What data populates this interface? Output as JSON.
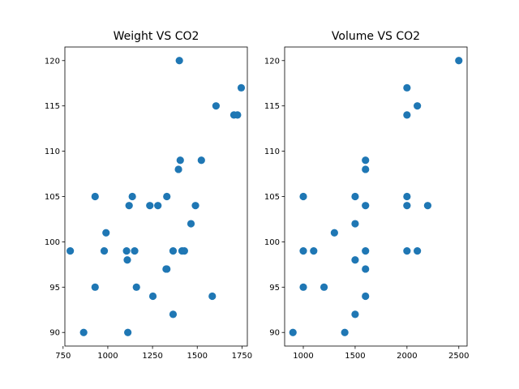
{
  "chart_data": [
    {
      "type": "scatter",
      "title": "Weight VS CO2",
      "xlabel": "",
      "ylabel": "",
      "xlim": [
        760,
        1780
      ],
      "ylim": [
        88.5,
        121.5
      ],
      "xticks": [
        750,
        1000,
        1250,
        1500,
        1750
      ],
      "yticks": [
        90,
        95,
        100,
        105,
        110,
        115,
        120
      ],
      "grid": false,
      "color": "#1f77b4",
      "points": [
        {
          "x": 790,
          "y": 99
        },
        {
          "x": 865,
          "y": 90
        },
        {
          "x": 929,
          "y": 95
        },
        {
          "x": 929,
          "y": 105
        },
        {
          "x": 980,
          "y": 99
        },
        {
          "x": 990,
          "y": 101
        },
        {
          "x": 1105,
          "y": 99
        },
        {
          "x": 1109,
          "y": 98
        },
        {
          "x": 1112,
          "y": 90
        },
        {
          "x": 1119,
          "y": 104
        },
        {
          "x": 1137,
          "y": 105
        },
        {
          "x": 1150,
          "y": 99
        },
        {
          "x": 1160,
          "y": 95
        },
        {
          "x": 1235,
          "y": 104
        },
        {
          "x": 1252,
          "y": 94
        },
        {
          "x": 1280,
          "y": 104
        },
        {
          "x": 1326,
          "y": 97
        },
        {
          "x": 1330,
          "y": 97
        },
        {
          "x": 1330,
          "y": 105
        },
        {
          "x": 1365,
          "y": 99
        },
        {
          "x": 1365,
          "y": 92
        },
        {
          "x": 1395,
          "y": 108
        },
        {
          "x": 1405,
          "y": 109
        },
        {
          "x": 1415,
          "y": 99
        },
        {
          "x": 1428,
          "y": 99
        },
        {
          "x": 1465,
          "y": 102
        },
        {
          "x": 1490,
          "y": 104
        },
        {
          "x": 1523,
          "y": 109
        },
        {
          "x": 1584,
          "y": 94
        },
        {
          "x": 1605,
          "y": 115
        },
        {
          "x": 1400,
          "y": 120
        },
        {
          "x": 1705,
          "y": 114
        },
        {
          "x": 1725,
          "y": 114
        },
        {
          "x": 1746,
          "y": 117
        }
      ]
    },
    {
      "type": "scatter",
      "title": "Volume VS CO2",
      "xlabel": "",
      "ylabel": "",
      "xlim": [
        820,
        2580
      ],
      "ylim": [
        88.5,
        121.5
      ],
      "xticks": [
        1000,
        1500,
        2000,
        2500
      ],
      "yticks": [
        90,
        95,
        100,
        105,
        110,
        115,
        120
      ],
      "grid": false,
      "color": "#1f77b4",
      "points": [
        {
          "x": 900,
          "y": 90
        },
        {
          "x": 1000,
          "y": 105
        },
        {
          "x": 1000,
          "y": 99
        },
        {
          "x": 1000,
          "y": 95
        },
        {
          "x": 1100,
          "y": 99
        },
        {
          "x": 1200,
          "y": 95
        },
        {
          "x": 1300,
          "y": 101
        },
        {
          "x": 1400,
          "y": 90
        },
        {
          "x": 1500,
          "y": 105
        },
        {
          "x": 1500,
          "y": 102
        },
        {
          "x": 1500,
          "y": 98
        },
        {
          "x": 1500,
          "y": 92
        },
        {
          "x": 1600,
          "y": 109
        },
        {
          "x": 1600,
          "y": 108
        },
        {
          "x": 1600,
          "y": 104
        },
        {
          "x": 1600,
          "y": 99
        },
        {
          "x": 1600,
          "y": 97
        },
        {
          "x": 1600,
          "y": 94
        },
        {
          "x": 2000,
          "y": 117
        },
        {
          "x": 2000,
          "y": 114
        },
        {
          "x": 2000,
          "y": 105
        },
        {
          "x": 2000,
          "y": 104
        },
        {
          "x": 2000,
          "y": 99
        },
        {
          "x": 2100,
          "y": 115
        },
        {
          "x": 2100,
          "y": 99
        },
        {
          "x": 2200,
          "y": 104
        },
        {
          "x": 2500,
          "y": 120
        }
      ]
    }
  ]
}
